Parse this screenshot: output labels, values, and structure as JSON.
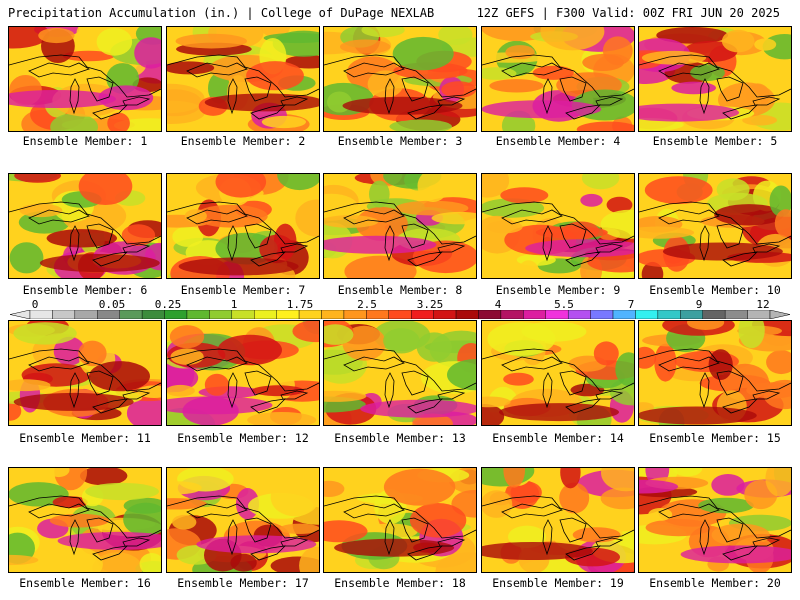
{
  "header": {
    "left_title": "Precipitation Accumulation (in.) | College of DuPage NEXLAB",
    "right_title": "12Z GEFS | F300 Valid: 00Z FRI JUN 20 2025"
  },
  "colorbar": {
    "tick_labels": [
      "0",
      "0.05",
      "0.25",
      "1",
      "1.75",
      "2.5",
      "3.25",
      "4",
      "5.5",
      "7",
      "9",
      "12"
    ],
    "colors": [
      "#e6e6e6",
      "#c8c8c8",
      "#a8a8a8",
      "#888888",
      "#5a9a5a",
      "#3c8c3c",
      "#2ea02e",
      "#60b830",
      "#90cc30",
      "#c8e028",
      "#ecf020",
      "#fff01e",
      "#ffd21e",
      "#ffb41e",
      "#ff961e",
      "#ff781e",
      "#ff4b1e",
      "#f01e1e",
      "#d21414",
      "#aa0a0a",
      "#8c0a32",
      "#b41464",
      "#dc1ea0",
      "#f032dc",
      "#b450f0",
      "#7878ff",
      "#50b4ff",
      "#32f0f0",
      "#32c8c8",
      "#3ca0a0",
      "#646464",
      "#8c8c8c",
      "#b4b4b4"
    ]
  },
  "members": [
    {
      "label": "Ensemble Member: 1"
    },
    {
      "label": "Ensemble Member: 2"
    },
    {
      "label": "Ensemble Member: 3"
    },
    {
      "label": "Ensemble Member: 4"
    },
    {
      "label": "Ensemble Member: 5"
    },
    {
      "label": "Ensemble Member: 6"
    },
    {
      "label": "Ensemble Member: 7"
    },
    {
      "label": "Ensemble Member: 8"
    },
    {
      "label": "Ensemble Member: 9"
    },
    {
      "label": "Ensemble Member: 10"
    },
    {
      "label": "Ensemble Member: 11"
    },
    {
      "label": "Ensemble Member: 12"
    },
    {
      "label": "Ensemble Member: 13"
    },
    {
      "label": "Ensemble Member: 14"
    },
    {
      "label": "Ensemble Member: 15"
    },
    {
      "label": "Ensemble Member: 16"
    },
    {
      "label": "Ensemble Member: 17"
    },
    {
      "label": "Ensemble Member: 18"
    },
    {
      "label": "Ensemble Member: 19"
    },
    {
      "label": "Ensemble Member: 20"
    }
  ]
}
